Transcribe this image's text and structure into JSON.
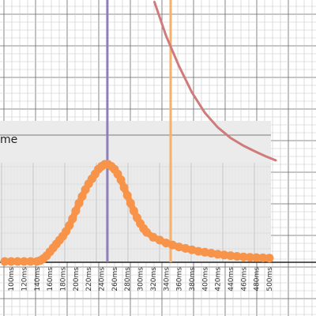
{
  "chart_data": {
    "type": "scatter",
    "title_fragment": "me",
    "xlabel": "",
    "ylabel": "",
    "x_unit": "ms",
    "xlim": [
      90,
      510
    ],
    "x_ticks": [
      100,
      120,
      140,
      160,
      180,
      200,
      220,
      240,
      260,
      280,
      300,
      320,
      340,
      360,
      380,
      400,
      420,
      440,
      460,
      480,
      500
    ],
    "x_tick_labels": [
      "100ms",
      "120ms",
      "140ms",
      "160ms",
      "180ms",
      "200ms",
      "220ms",
      "240ms",
      "260ms",
      "280ms",
      "300ms",
      "320ms",
      "340ms",
      "360ms",
      "380ms",
      "400ms",
      "420ms",
      "440ms",
      "460ms",
      "480ms",
      "500ms"
    ],
    "grid": true,
    "inset_panel_x_range": [
      90,
      500
    ],
    "vertical_markers": [
      {
        "x": 249,
        "color": "#8f7fb8"
      },
      {
        "x": 347,
        "color": "#f6b26b"
      }
    ],
    "series": [
      {
        "kind": "decay-curve",
        "color": "#d07b7b",
        "points": [
          [
            322,
            5.0
          ],
          [
            340,
            4.3
          ],
          [
            360,
            3.68
          ],
          [
            380,
            3.14
          ],
          [
            400,
            2.72
          ],
          [
            420,
            2.42
          ],
          [
            440,
            2.2
          ],
          [
            460,
            2.04
          ],
          [
            480,
            1.91
          ],
          [
            495,
            1.82
          ],
          [
            510,
            1.74
          ]
        ]
      },
      {
        "kind": "distribution",
        "color": "#f7944a",
        "points": [
          [
            90,
            0
          ],
          [
            100,
            0
          ],
          [
            110,
            0
          ],
          [
            120,
            0
          ],
          [
            130,
            0
          ],
          [
            140,
            0
          ],
          [
            145,
            0.01
          ],
          [
            150,
            0.03
          ],
          [
            155,
            0.06
          ],
          [
            160,
            0.1
          ],
          [
            165,
            0.14
          ],
          [
            170,
            0.18
          ],
          [
            175,
            0.22
          ],
          [
            180,
            0.26
          ],
          [
            185,
            0.31
          ],
          [
            190,
            0.37
          ],
          [
            195,
            0.44
          ],
          [
            200,
            0.52
          ],
          [
            205,
            0.6
          ],
          [
            210,
            0.67
          ],
          [
            215,
            0.74
          ],
          [
            220,
            0.8
          ],
          [
            225,
            0.85
          ],
          [
            230,
            0.9
          ],
          [
            235,
            0.95
          ],
          [
            240,
            0.98
          ],
          [
            245,
            1.0
          ],
          [
            250,
            1.0
          ],
          [
            255,
            0.98
          ],
          [
            260,
            0.95
          ],
          [
            265,
            0.9
          ],
          [
            270,
            0.84
          ],
          [
            275,
            0.76
          ],
          [
            280,
            0.68
          ],
          [
            285,
            0.6
          ],
          [
            290,
            0.52
          ],
          [
            295,
            0.45
          ],
          [
            300,
            0.39
          ],
          [
            305,
            0.34
          ],
          [
            310,
            0.3
          ],
          [
            320,
            0.25
          ],
          [
            330,
            0.22
          ],
          [
            340,
            0.19
          ],
          [
            350,
            0.17
          ],
          [
            360,
            0.15
          ],
          [
            370,
            0.135
          ],
          [
            380,
            0.12
          ],
          [
            390,
            0.105
          ],
          [
            400,
            0.095
          ],
          [
            410,
            0.085
          ],
          [
            420,
            0.075
          ],
          [
            430,
            0.067
          ],
          [
            440,
            0.06
          ],
          [
            450,
            0.053
          ],
          [
            460,
            0.047
          ],
          [
            470,
            0.043
          ],
          [
            480,
            0.04
          ],
          [
            490,
            0.037
          ],
          [
            500,
            0.035
          ]
        ]
      }
    ]
  }
}
